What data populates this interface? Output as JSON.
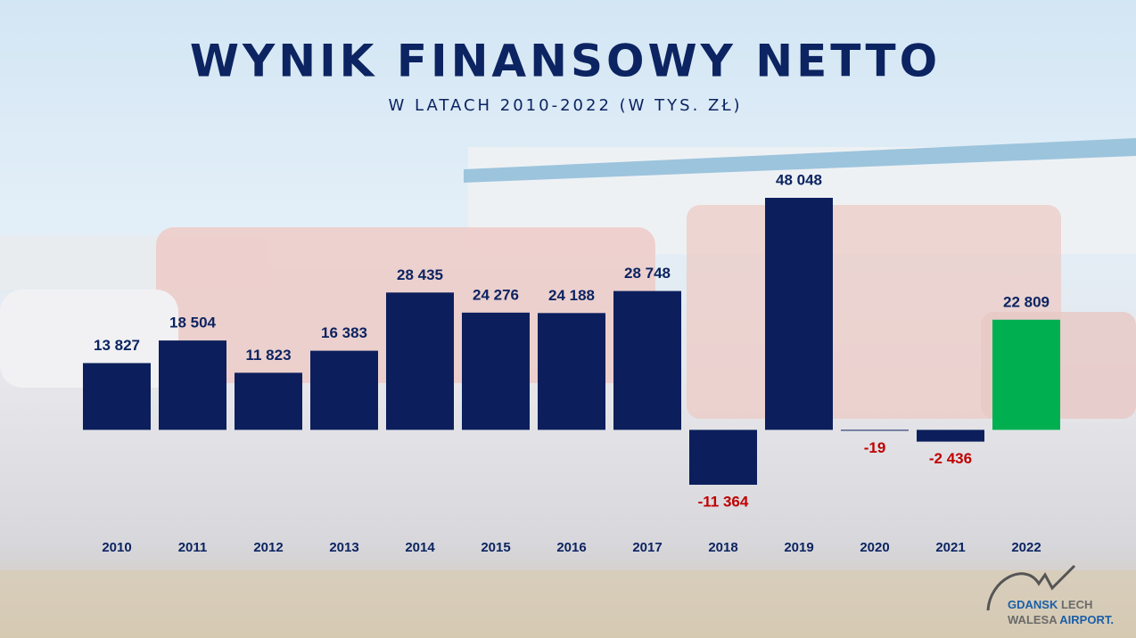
{
  "chart_data": {
    "type": "bar",
    "title": "WYNIK FINANSOWY NETTO",
    "subtitle": "W LATACH 2010-2022 (W TYS. ZŁ)",
    "categories": [
      "2010",
      "2011",
      "2012",
      "2013",
      "2014",
      "2015",
      "2016",
      "2017",
      "2018",
      "2019",
      "2020",
      "2021",
      "2022"
    ],
    "values": [
      13827,
      18504,
      11823,
      16383,
      28435,
      24276,
      24188,
      28748,
      -11364,
      48048,
      -19,
      -2436,
      22809
    ],
    "value_labels": [
      "13 827",
      "18 504",
      "11 823",
      "16 383",
      "28 435",
      "24 276",
      "24 188",
      "28 748",
      "-11 364",
      "48 048",
      "-19",
      "-2 436",
      "22 809"
    ],
    "colors": [
      "#0c1f5c",
      "#0c1f5c",
      "#0c1f5c",
      "#0c1f5c",
      "#0c1f5c",
      "#0c1f5c",
      "#0c1f5c",
      "#0c1f5c",
      "#0c1f5c",
      "#0c1f5c",
      "#0c1f5c",
      "#0c1f5c",
      "#00b050"
    ],
    "label_color": "#0c2461",
    "negative_label_color": "#c00000"
  },
  "logo": {
    "line1": [
      "GDANSK",
      "LECH"
    ],
    "line2": [
      "WALESA",
      "AIRPORT."
    ]
  }
}
